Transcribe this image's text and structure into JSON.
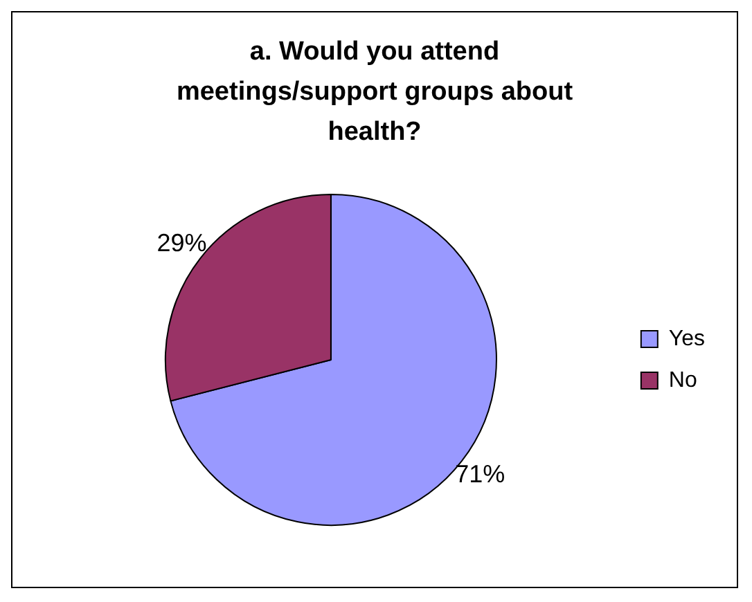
{
  "chart_data": {
    "type": "pie",
    "title": "a. Would you attend meetings/support groups about health?",
    "categories": [
      "Yes",
      "No"
    ],
    "values": [
      71,
      29
    ],
    "colors": [
      "#9999ff",
      "#993366"
    ],
    "value_labels": [
      "71%",
      "29%"
    ],
    "legend": "right"
  }
}
